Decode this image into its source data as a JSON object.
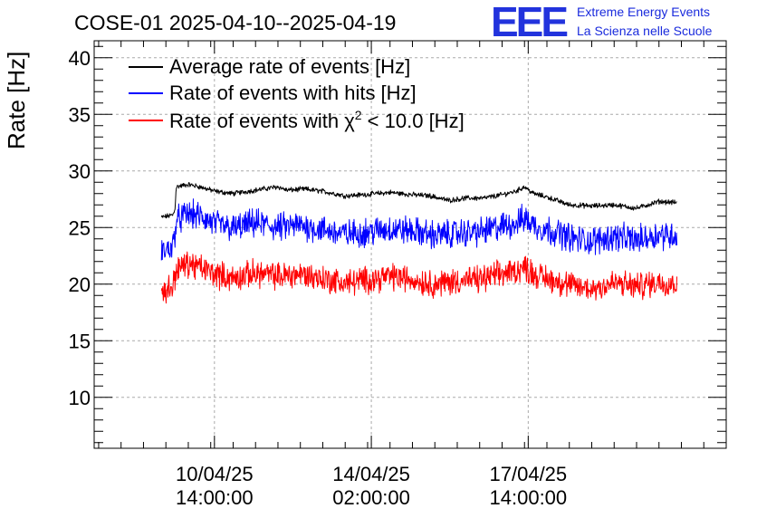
{
  "chart_data": {
    "type": "line",
    "title": "COSE-01 2025-04-10--2025-04-19",
    "xlabel": "",
    "ylabel": "Rate [Hz]",
    "ylim": [
      5.5,
      41.5
    ],
    "xlim": [
      -2.1,
      12.0
    ],
    "x_unit": "days since 2025-04-10 00:00",
    "yticks": [
      10,
      15,
      20,
      25,
      30,
      35,
      40
    ],
    "xticks": [
      {
        "value": 0.583,
        "line1": "10/04/25",
        "line2": "14:00:00"
      },
      {
        "value": 4.083,
        "line1": "14/04/25",
        "line2": "02:00:00"
      },
      {
        "value": 7.583,
        "line1": "17/04/25",
        "line2": "14:00:00"
      }
    ],
    "grid": true,
    "legend_position": "top-left",
    "series": [
      {
        "name": "Average rate of events [Hz]",
        "color": "#000000",
        "noise": 0.18,
        "points": [
          [
            -0.6,
            25.9
          ],
          [
            -0.35,
            26.1
          ],
          [
            -0.3,
            26.5
          ],
          [
            -0.27,
            28.6
          ],
          [
            0.0,
            28.8
          ],
          [
            0.25,
            28.6
          ],
          [
            0.6,
            28.2
          ],
          [
            1.0,
            28.0
          ],
          [
            1.5,
            28.3
          ],
          [
            2.0,
            28.6
          ],
          [
            2.2,
            28.3
          ],
          [
            2.6,
            28.4
          ],
          [
            3.0,
            28.2
          ],
          [
            3.5,
            27.8
          ],
          [
            3.9,
            27.9
          ],
          [
            4.2,
            28.0
          ],
          [
            4.5,
            28.1
          ],
          [
            5.0,
            27.9
          ],
          [
            5.4,
            27.8
          ],
          [
            5.8,
            27.4
          ],
          [
            6.2,
            27.6
          ],
          [
            6.6,
            27.6
          ],
          [
            7.0,
            27.9
          ],
          [
            7.3,
            28.2
          ],
          [
            7.5,
            28.6
          ],
          [
            7.7,
            28.0
          ],
          [
            8.0,
            27.7
          ],
          [
            8.5,
            27.0
          ],
          [
            9.0,
            26.9
          ],
          [
            9.5,
            27.0
          ],
          [
            10.0,
            26.7
          ],
          [
            10.5,
            27.3
          ],
          [
            10.9,
            27.2
          ]
        ]
      },
      {
        "name": "Rate of events with hits [Hz]",
        "color": "#0000ff",
        "noise": 1.0,
        "points": [
          [
            -0.6,
            22.8
          ],
          [
            -0.35,
            23.3
          ],
          [
            -0.3,
            24.5
          ],
          [
            -0.27,
            25.6
          ],
          [
            0.0,
            26.2
          ],
          [
            0.25,
            26.0
          ],
          [
            0.6,
            25.3
          ],
          [
            1.0,
            24.9
          ],
          [
            1.5,
            25.4
          ],
          [
            2.0,
            25.0
          ],
          [
            2.5,
            25.2
          ],
          [
            3.0,
            24.8
          ],
          [
            3.5,
            24.4
          ],
          [
            4.0,
            24.6
          ],
          [
            4.5,
            24.9
          ],
          [
            5.0,
            24.7
          ],
          [
            5.5,
            24.3
          ],
          [
            6.0,
            24.5
          ],
          [
            6.5,
            24.6
          ],
          [
            7.0,
            25.1
          ],
          [
            7.3,
            25.4
          ],
          [
            7.5,
            25.8
          ],
          [
            7.8,
            25.0
          ],
          [
            8.2,
            24.6
          ],
          [
            8.6,
            24.0
          ],
          [
            9.0,
            23.8
          ],
          [
            9.5,
            24.2
          ],
          [
            10.0,
            23.9
          ],
          [
            10.5,
            24.4
          ],
          [
            10.9,
            24.3
          ]
        ]
      },
      {
        "name": "Rate of events with χ2 < 10.0 [Hz]",
        "color": "#ff0000",
        "noise": 0.95,
        "points": [
          [
            -0.6,
            19.2
          ],
          [
            -0.35,
            19.8
          ],
          [
            -0.3,
            20.6
          ],
          [
            -0.27,
            21.3
          ],
          [
            0.0,
            21.8
          ],
          [
            0.25,
            21.5
          ],
          [
            0.6,
            20.9
          ],
          [
            1.0,
            20.5
          ],
          [
            1.5,
            21.0
          ],
          [
            2.0,
            20.7
          ],
          [
            2.5,
            20.9
          ],
          [
            3.0,
            20.5
          ],
          [
            3.5,
            20.1
          ],
          [
            4.0,
            20.4
          ],
          [
            4.5,
            20.7
          ],
          [
            5.0,
            20.4
          ],
          [
            5.5,
            20.0
          ],
          [
            6.0,
            20.3
          ],
          [
            6.5,
            20.4
          ],
          [
            7.0,
            20.9
          ],
          [
            7.3,
            21.2
          ],
          [
            7.5,
            21.5
          ],
          [
            7.8,
            20.7
          ],
          [
            8.2,
            20.3
          ],
          [
            8.6,
            19.8
          ],
          [
            9.0,
            19.6
          ],
          [
            9.5,
            20.1
          ],
          [
            10.0,
            19.8
          ],
          [
            10.5,
            20.2
          ],
          [
            10.9,
            20.1
          ]
        ]
      }
    ]
  },
  "legend": {
    "avg_label": "Average rate of events [Hz]",
    "hits_label": "Rate of events with hits [Hz]",
    "chi2_prefix": "Rate of events with χ",
    "chi2_sup": "2",
    "chi2_suffix": " < 10.0 [Hz]"
  },
  "logo": {
    "letters": "EEE",
    "line1": "Extreme Energy Events",
    "line2": "La Scienza nelle Scuole",
    "color": "#1a2bdd"
  }
}
